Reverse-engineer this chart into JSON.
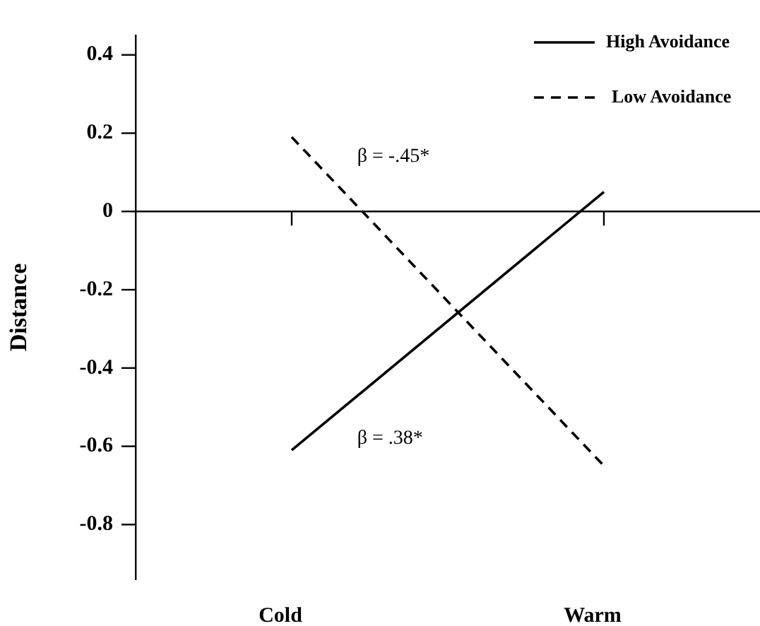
{
  "chart_data": {
    "type": "line",
    "ylabel": "Distance",
    "categories": [
      "Cold",
      "Warm"
    ],
    "series": [
      {
        "name": "High Avoidance",
        "color": "#000000",
        "line_style": "solid",
        "values": [
          -0.61,
          0.05
        ]
      },
      {
        "name": "Low Avoidance",
        "color": "#000000",
        "line_style": "dashed",
        "values": [
          0.19,
          -0.65
        ]
      }
    ],
    "ylim": [
      -0.94,
      0.45
    ],
    "yticks": [
      0.4,
      0.2,
      {
        "value": 0,
        "label": "0"
      },
      -0.2,
      -0.4,
      -0.6,
      -0.8
    ],
    "annotations": [
      "β = -.45*",
      "β = .38*"
    ],
    "legend": "top right",
    "marker": "none"
  }
}
